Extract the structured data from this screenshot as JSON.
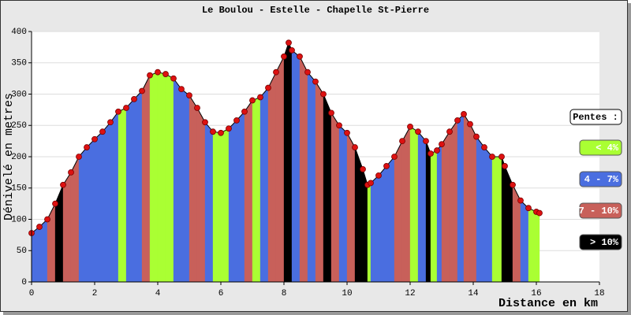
{
  "chart_data": {
    "type": "elevation-profile",
    "title": "Le Boulou - Estelle - Chapelle St-Pierre",
    "y_label": "Dénivelé en metres",
    "x_label": "Distance en km",
    "xlim": [
      0,
      18
    ],
    "xticks": [
      0,
      2,
      4,
      6,
      8,
      10,
      12,
      14,
      16,
      18
    ],
    "ylim": [
      0,
      400
    ],
    "yticks": [
      0,
      50,
      100,
      150,
      200,
      250,
      300,
      350,
      400
    ],
    "grid": true,
    "line_color": "#000000",
    "point_color": "#dd1111",
    "x": [
      0,
      0.25,
      0.5,
      0.75,
      1,
      1.25,
      1.5,
      1.75,
      2,
      2.25,
      2.5,
      2.75,
      3,
      3.25,
      3.5,
      3.75,
      4,
      4.25,
      4.5,
      4.75,
      5,
      5.25,
      5.5,
      5.75,
      6,
      6.25,
      6.5,
      6.75,
      7,
      7.25,
      7.5,
      7.75,
      8,
      8.15,
      8.25,
      8.5,
      8.75,
      9,
      9.25,
      9.5,
      9.75,
      10,
      10.25,
      10.5,
      10.65,
      10.75,
      11,
      11.25,
      11.5,
      11.75,
      12,
      12.25,
      12.5,
      12.65,
      12.85,
      13,
      13.25,
      13.5,
      13.7,
      13.9,
      14.1,
      14.35,
      14.6,
      14.9,
      15,
      15.25,
      15.5,
      15.75,
      16,
      16.1
    ],
    "y": [
      78,
      88,
      100,
      125,
      155,
      175,
      200,
      215,
      228,
      240,
      255,
      272,
      278,
      292,
      305,
      330,
      335,
      332,
      325,
      308,
      298,
      278,
      255,
      240,
      238,
      245,
      258,
      272,
      290,
      295,
      310,
      335,
      360,
      382,
      370,
      360,
      335,
      320,
      300,
      270,
      250,
      238,
      215,
      180,
      155,
      158,
      170,
      185,
      200,
      225,
      248,
      240,
      225,
      205,
      210,
      220,
      240,
      258,
      268,
      252,
      232,
      215,
      200,
      200,
      185,
      155,
      130,
      118,
      112,
      110
    ],
    "segment_class": [
      1,
      1,
      2,
      3,
      2,
      2,
      1,
      1,
      1,
      1,
      1,
      0,
      1,
      1,
      2,
      0,
      0,
      0,
      1,
      1,
      2,
      2,
      1,
      0,
      0,
      1,
      1,
      2,
      0,
      1,
      2,
      2,
      3,
      3,
      1,
      2,
      1,
      2,
      3,
      2,
      1,
      2,
      3,
      3,
      0,
      1,
      1,
      1,
      2,
      2,
      0,
      1,
      3,
      0,
      1,
      2,
      2,
      1,
      2,
      2,
      1,
      1,
      0,
      3,
      3,
      2,
      1,
      0,
      0
    ],
    "legend_title": "Pentes :",
    "slope_classes": [
      {
        "label": "< 4%",
        "color": "#aaff33"
      },
      {
        "label": "4 - 7%",
        "color": "#4a6ee0"
      },
      {
        "label": "7 - 10%",
        "color": "#c8605a"
      },
      {
        "label": "> 10%",
        "color": "#000000"
      }
    ]
  }
}
